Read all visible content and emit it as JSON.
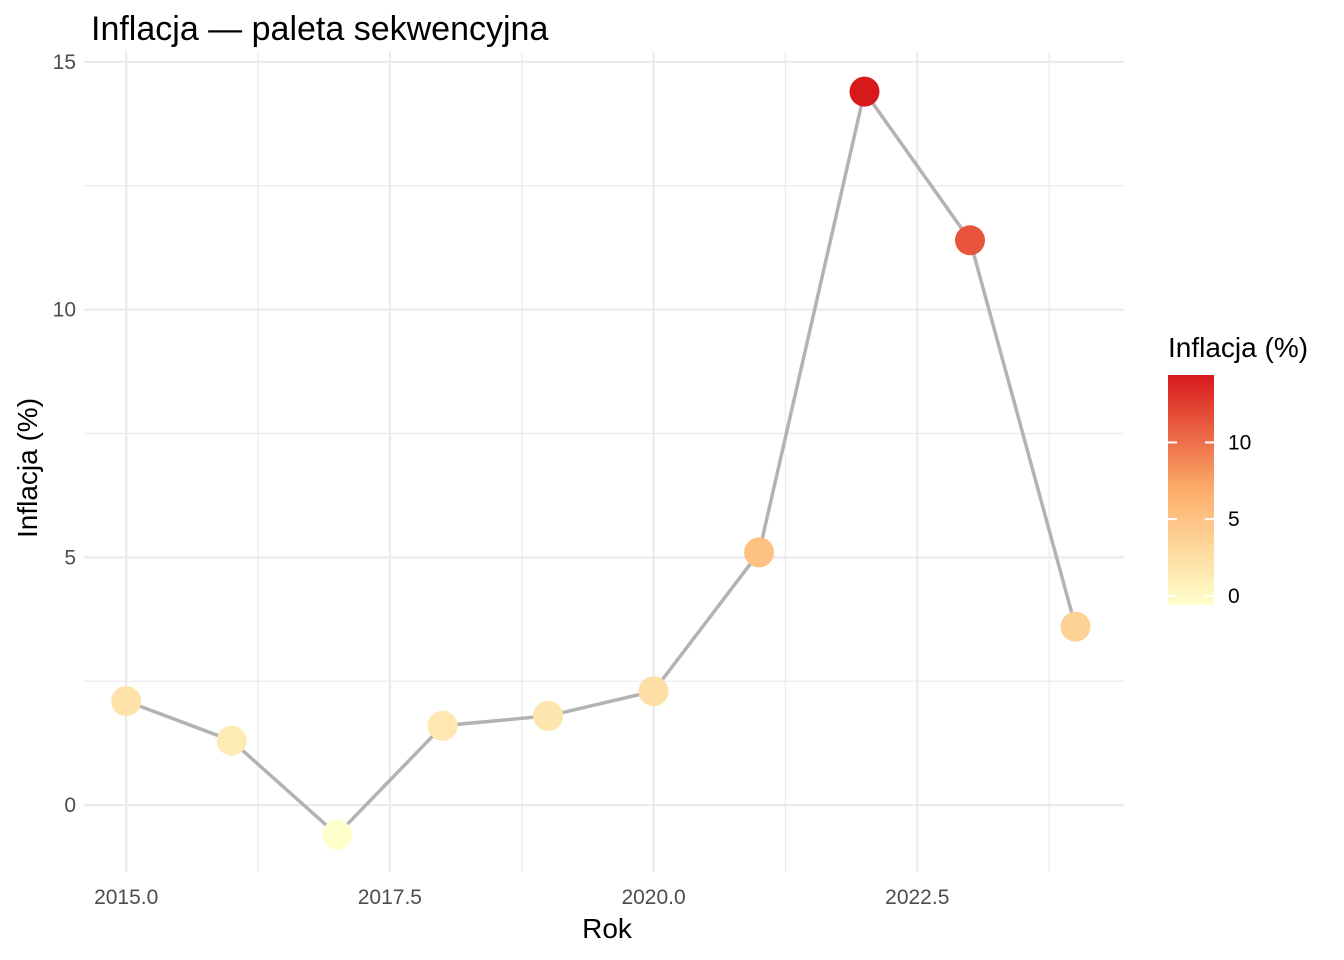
{
  "chart_data": {
    "type": "line",
    "title": "Inflacja — paleta sekwencyjna",
    "xlabel": "Rok",
    "ylabel": "Inflacja (%)",
    "x": [
      2015,
      2016,
      2017,
      2018,
      2019,
      2020,
      2021,
      2022,
      2023,
      2024
    ],
    "series": [
      {
        "values": [
          2.1,
          1.3,
          -0.6,
          1.6,
          1.8,
          2.3,
          5.1,
          14.4,
          11.4,
          3.6
        ]
      }
    ],
    "xlim": [
      2014.6,
      2024.46
    ],
    "ylim": [
      -1.35,
      15.2
    ],
    "x_ticks": [
      2015.0,
      2017.5,
      2020.0,
      2022.5
    ],
    "x_tick_labels": [
      "2015.0",
      "2017.5",
      "2020.0",
      "2022.5"
    ],
    "y_ticks": [
      0,
      5,
      10,
      15
    ],
    "y_tick_labels": [
      "0",
      "5",
      "10",
      "15"
    ],
    "grid": true,
    "line_color": "#b3b3b3",
    "color_scale": {
      "title": "Inflacja (%)",
      "low_color": "#ffffcc",
      "mid_color": "#fdae6b",
      "high_color": "#d7191c",
      "range": [
        -0.6,
        14.4
      ],
      "ticks": [
        0,
        5,
        10
      ],
      "tick_labels": [
        "0",
        "5",
        "10"
      ],
      "legend_position": "right"
    }
  }
}
